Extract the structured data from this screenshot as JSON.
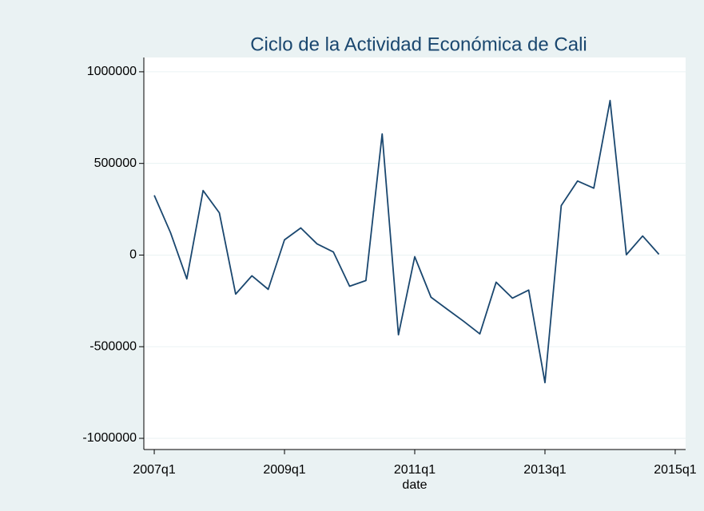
{
  "chart_data": {
    "type": "line",
    "title": "Ciclo de la Actividad Económica de Cali",
    "x_label": "date",
    "x": [
      2007,
      2007.25,
      2007.5,
      2007.75,
      2008,
      2008.25,
      2008.5,
      2008.75,
      2009,
      2009.25,
      2009.5,
      2009.75,
      2010,
      2010.25,
      2010.5,
      2010.75,
      2011,
      2011.25,
      2011.5,
      2011.75,
      2012,
      2012.25,
      2012.5,
      2012.75,
      2013,
      2013.25,
      2013.5,
      2013.75,
      2014,
      2014.25,
      2014.5,
      2014.75
    ],
    "values": [
      326000,
      122000,
      -130000,
      352000,
      230000,
      -213000,
      -113000,
      -187000,
      83000,
      148000,
      61000,
      17000,
      -170000,
      -139000,
      661000,
      -435000,
      -9000,
      -230000,
      -296000,
      -361000,
      -430000,
      -148000,
      -235000,
      -191000,
      -696000,
      270000,
      404000,
      365000,
      843000,
      2000,
      104000,
      4000
    ],
    "color": "#1a476f",
    "xlim": [
      2006.84,
      2015.16
    ],
    "xticks": [
      {
        "value": 2007,
        "label": "2007q1"
      },
      {
        "value": 2009,
        "label": "2009q1"
      },
      {
        "value": 2011,
        "label": "2011q1"
      },
      {
        "value": 2013,
        "label": "2013q1"
      },
      {
        "value": 2015,
        "label": "2015q1"
      }
    ],
    "ylim": [
      -1061000,
      1078000
    ],
    "yticks": [
      -1000000,
      -500000,
      0,
      500000,
      1000000
    ],
    "grid": true
  }
}
